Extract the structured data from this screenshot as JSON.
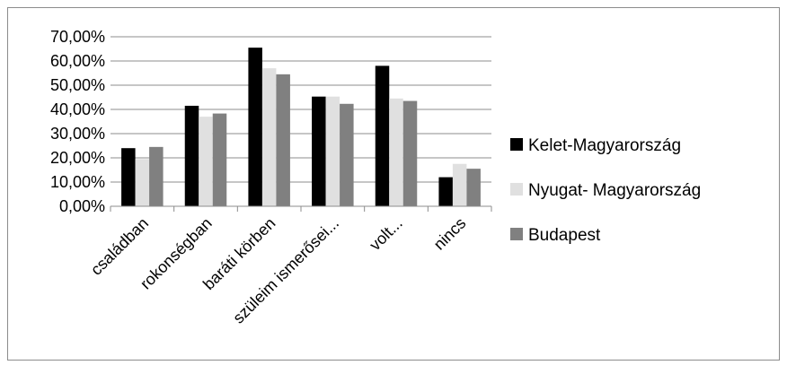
{
  "chart_data": {
    "type": "bar",
    "categories": [
      "családban",
      "rokonségban",
      "baráti körben",
      "szüleim ismerősei...",
      "volt...",
      "nincs"
    ],
    "series": [
      {
        "name": "Kelet-Magyarország",
        "color": "#000000",
        "values": [
          24.0,
          41.5,
          65.5,
          45.3,
          58.0,
          12.0
        ]
      },
      {
        "name": "Nyugat- Magyarország",
        "color": "#e0e0e0",
        "values": [
          19.5,
          37.0,
          57.0,
          45.3,
          44.5,
          17.5
        ]
      },
      {
        "name": "Budapest",
        "color": "#808080",
        "values": [
          24.5,
          38.3,
          54.5,
          42.3,
          43.5,
          15.5
        ]
      }
    ],
    "yticks": [
      "0,00%",
      "10,00%",
      "20,00%",
      "30,00%",
      "40,00%",
      "50,00%",
      "60,00%",
      "70,00%"
    ],
    "ylim": [
      0,
      70
    ],
    "grid": true,
    "legend": "right",
    "title": "",
    "xlabel": "",
    "ylabel": ""
  }
}
